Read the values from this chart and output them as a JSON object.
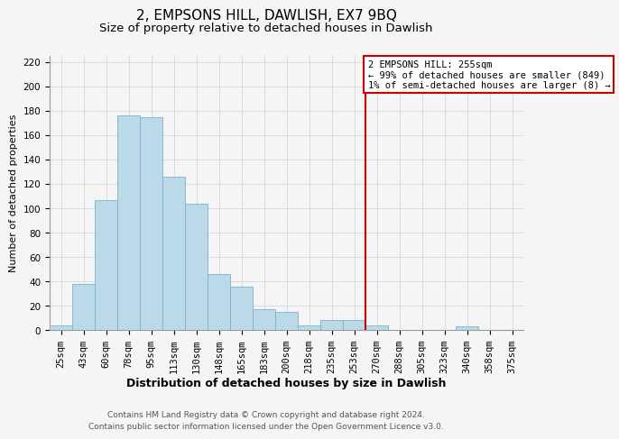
{
  "title": "2, EMPSONS HILL, DAWLISH, EX7 9BQ",
  "subtitle": "Size of property relative to detached houses in Dawlish",
  "xlabel": "Distribution of detached houses by size in Dawlish",
  "ylabel": "Number of detached properties",
  "bar_labels": [
    "25sqm",
    "43sqm",
    "60sqm",
    "78sqm",
    "95sqm",
    "113sqm",
    "130sqm",
    "148sqm",
    "165sqm",
    "183sqm",
    "200sqm",
    "218sqm",
    "235sqm",
    "253sqm",
    "270sqm",
    "288sqm",
    "305sqm",
    "323sqm",
    "340sqm",
    "358sqm",
    "375sqm"
  ],
  "bar_heights": [
    4,
    38,
    107,
    176,
    175,
    126,
    104,
    46,
    36,
    17,
    15,
    4,
    8,
    8,
    4,
    0,
    0,
    0,
    3,
    0,
    0
  ],
  "bar_color": "#bcd9ea",
  "bar_edge_color": "#7ab3d0",
  "vline_x": 13.5,
  "vline_color": "#cc0000",
  "ylim": [
    0,
    225
  ],
  "yticks": [
    0,
    20,
    40,
    60,
    80,
    100,
    120,
    140,
    160,
    180,
    200,
    220
  ],
  "annotation_title": "2 EMPSONS HILL: 255sqm",
  "annotation_line1": "← 99% of detached houses are smaller (849)",
  "annotation_line2": "1% of semi-detached houses are larger (8) →",
  "annotation_box_color": "#ffffff",
  "annotation_box_edge": "#cc0000",
  "footer_line1": "Contains HM Land Registry data © Crown copyright and database right 2024.",
  "footer_line2": "Contains public sector information licensed under the Open Government Licence v3.0.",
  "title_fontsize": 11,
  "subtitle_fontsize": 9.5,
  "xlabel_fontsize": 9,
  "ylabel_fontsize": 8,
  "tick_fontsize": 7.5,
  "annotation_fontsize": 7.5,
  "footer_fontsize": 6.5
}
